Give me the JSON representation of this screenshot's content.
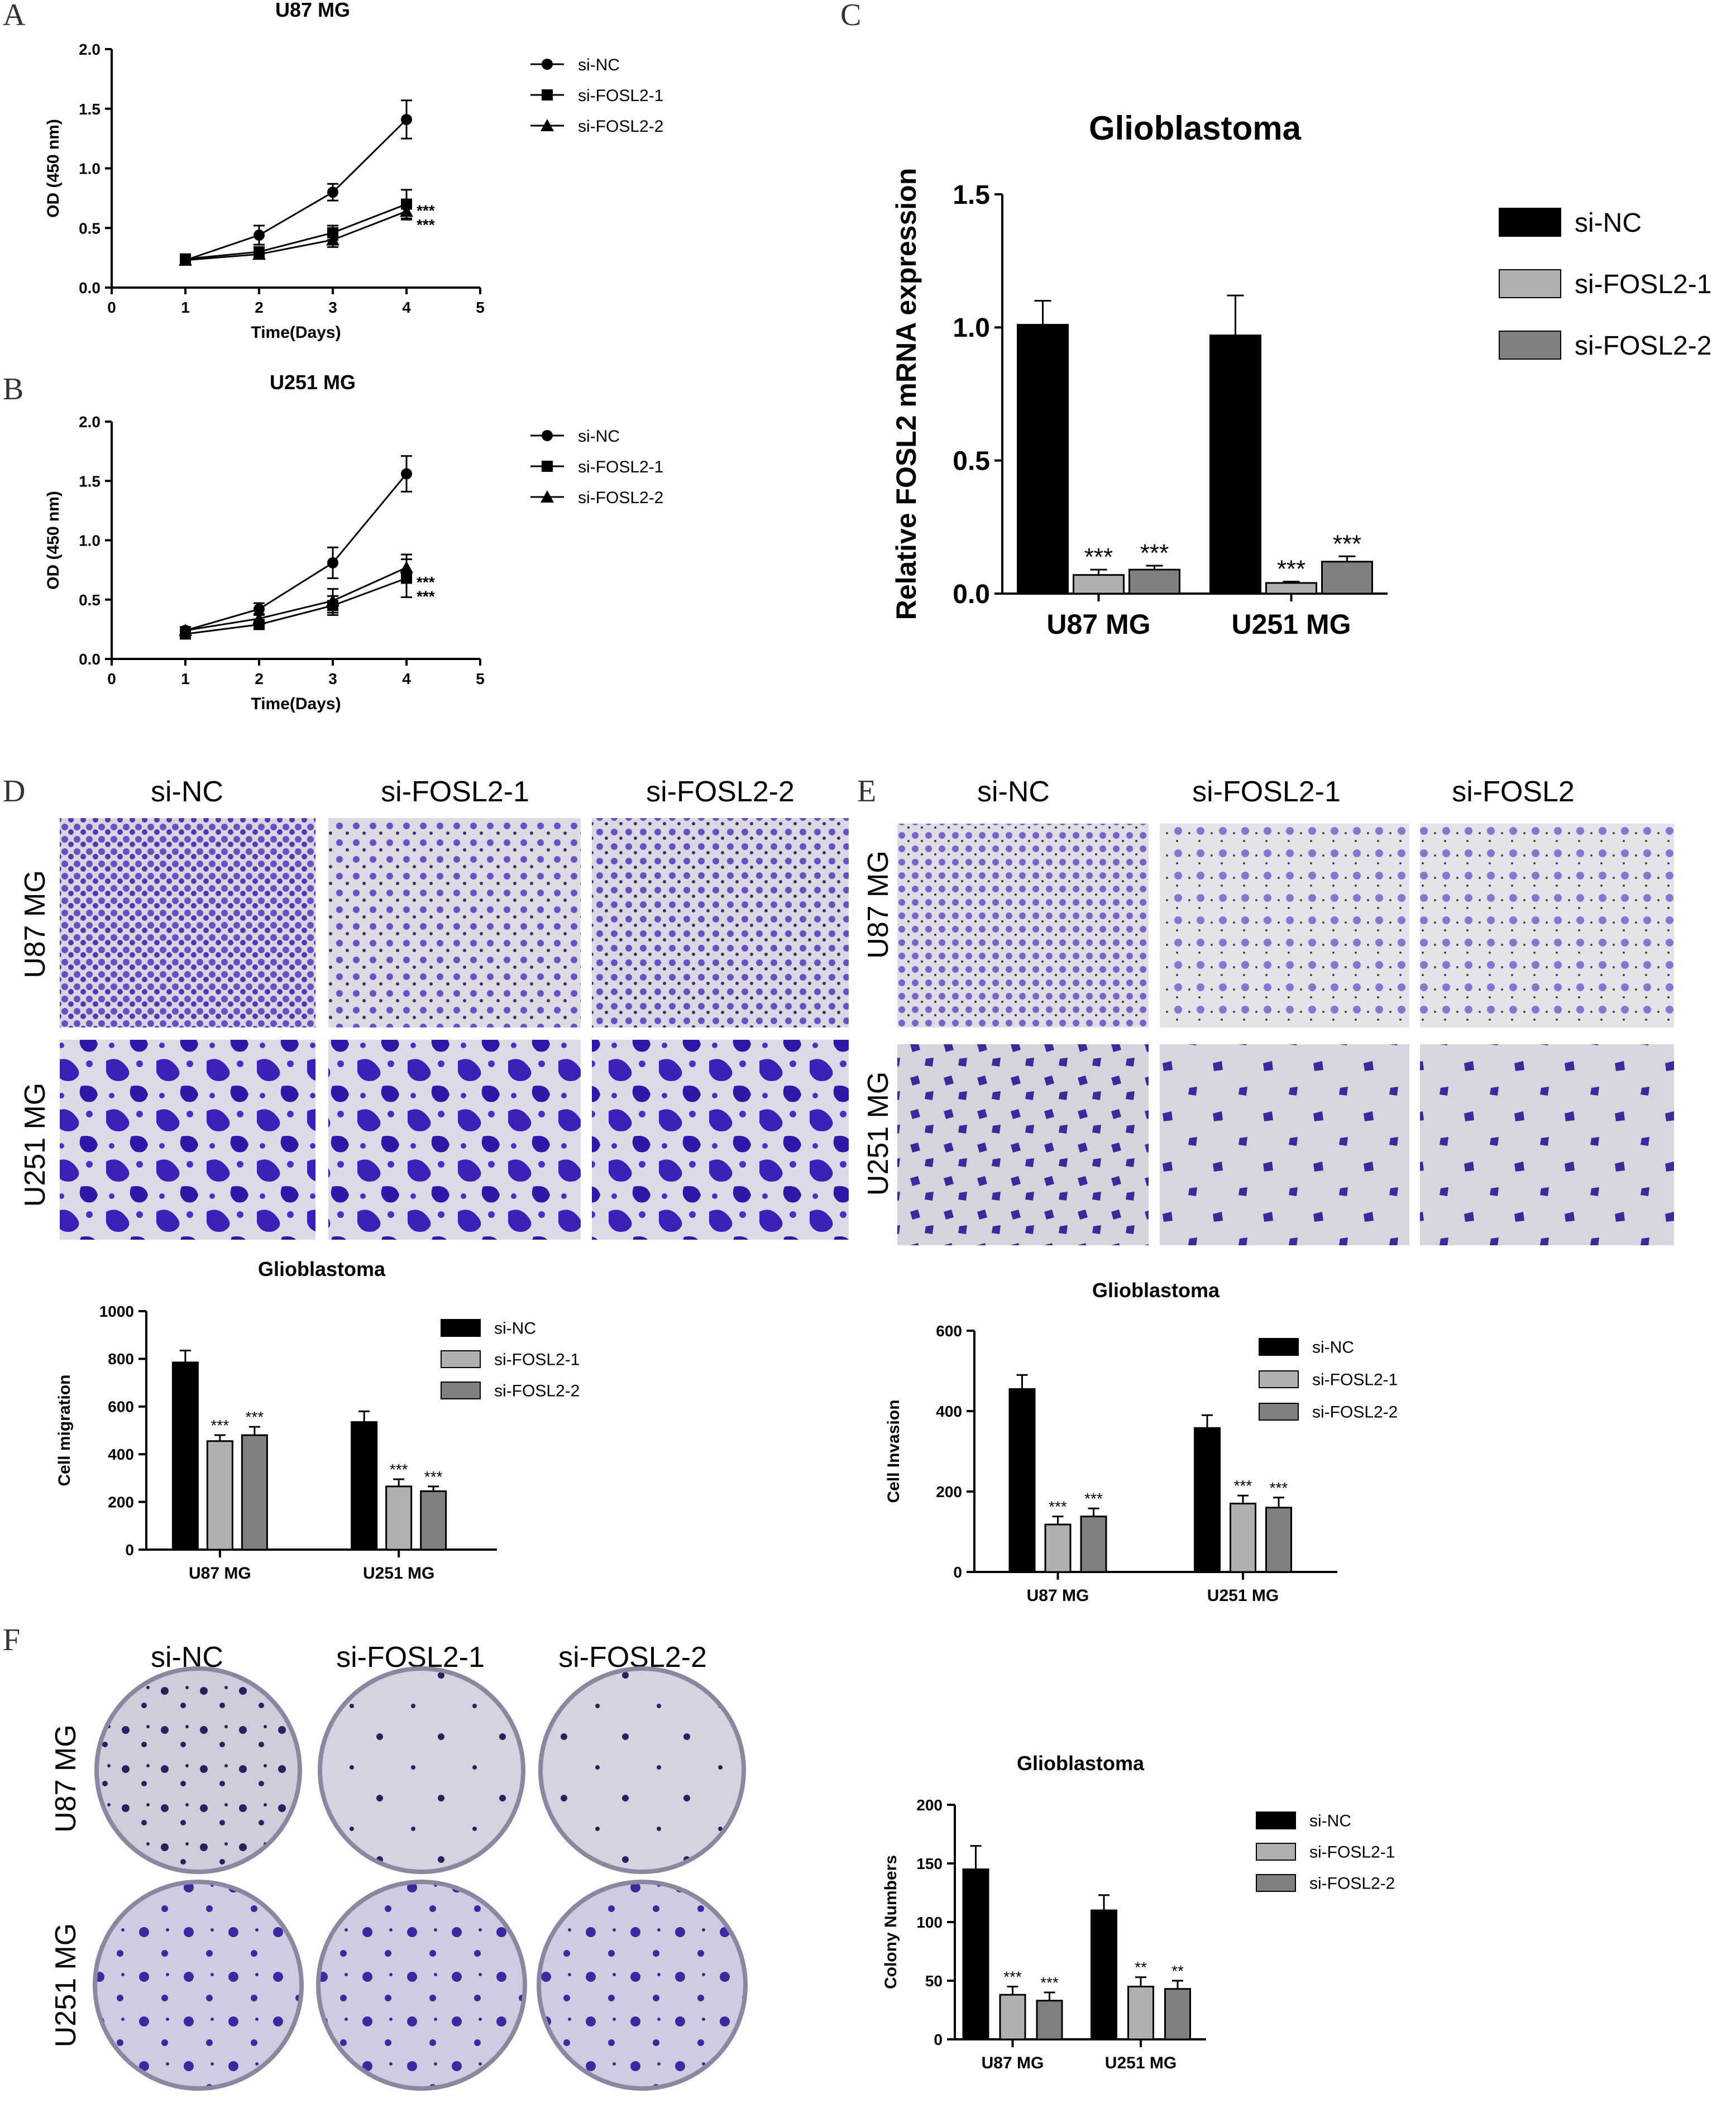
{
  "panels": {
    "A": "A",
    "B": "B",
    "C": "C",
    "D": "D",
    "E": "E",
    "F": "F"
  },
  "images": {
    "D": {
      "columns": [
        "si-NC",
        "si-FOSL2-1",
        "si-FOSL2-2"
      ],
      "rows": [
        "U87 MG",
        "U251 MG"
      ]
    },
    "E": {
      "columns": [
        "si-NC",
        "si-FOSL2-1",
        "si-FOSL2"
      ],
      "rows": [
        "U87 MG",
        "U251 MG"
      ]
    },
    "F": {
      "columns": [
        "si-NC",
        "si-FOSL2-1",
        "si-FOSL2-2"
      ],
      "rows": [
        "U87 MG",
        "U251 MG"
      ]
    }
  },
  "colors": {
    "si_nc": "#000000",
    "si_fosl2_1": "#b0b0b0",
    "si_fosl2_2": "#808080",
    "crystal_violet": "#4b2ea8",
    "plate_bg": "#d9d6e6"
  },
  "chart_data": [
    {
      "id": "A",
      "type": "line",
      "title": "U87 MG",
      "xlabel": "Time(Days)",
      "ylabel": "OD (450 nm)",
      "xlim": [
        0,
        5
      ],
      "ylim": [
        0,
        2.0
      ],
      "xticks": [
        "0",
        "1",
        "2",
        "3",
        "4",
        "5"
      ],
      "yticks": [
        "0.0",
        "0.5",
        "1.0",
        "1.5",
        "2.0"
      ],
      "x": [
        1,
        2,
        3,
        4
      ],
      "series": [
        {
          "name": "si-NC",
          "marker": "circle",
          "values": [
            0.23,
            0.44,
            0.8,
            1.41
          ],
          "err": [
            0.02,
            0.08,
            0.07,
            0.16
          ]
        },
        {
          "name": "si-FOSL2-1",
          "marker": "square",
          "values": [
            0.24,
            0.3,
            0.46,
            0.7
          ],
          "err": [
            0.02,
            0.04,
            0.06,
            0.12
          ]
        },
        {
          "name": "si-FOSL2-2",
          "marker": "triangle",
          "values": [
            0.23,
            0.28,
            0.4,
            0.64
          ],
          "err": [
            0.02,
            0.03,
            0.06,
            0.07
          ]
        }
      ],
      "annotations": [
        "***",
        "***"
      ]
    },
    {
      "id": "B",
      "type": "line",
      "title": "U251 MG",
      "xlabel": "Time(Days)",
      "ylabel": "OD (450 nm)",
      "xlim": [
        0,
        5
      ],
      "ylim": [
        0,
        2.0
      ],
      "xticks": [
        "0",
        "1",
        "2",
        "3",
        "4",
        "5"
      ],
      "yticks": [
        "0.0",
        "0.5",
        "1.0",
        "1.5",
        "2.0"
      ],
      "x": [
        1,
        2,
        3,
        4
      ],
      "series": [
        {
          "name": "si-NC",
          "marker": "circle",
          "values": [
            0.24,
            0.42,
            0.81,
            1.56
          ],
          "err": [
            0.03,
            0.05,
            0.13,
            0.15
          ]
        },
        {
          "name": "si-FOSL2-1",
          "marker": "square",
          "values": [
            0.21,
            0.29,
            0.45,
            0.68
          ],
          "err": [
            0.03,
            0.03,
            0.08,
            0.16
          ]
        },
        {
          "name": "si-FOSL2-2",
          "marker": "triangle",
          "values": [
            0.24,
            0.34,
            0.49,
            0.77
          ],
          "err": [
            0.03,
            0.04,
            0.1,
            0.11
          ]
        }
      ],
      "annotations": [
        "***",
        "***"
      ]
    },
    {
      "id": "C",
      "type": "bar",
      "title": "Glioblastoma",
      "xlabel": "",
      "ylabel": "Relative FOSL2 mRNA expression",
      "ylim": [
        0,
        1.5
      ],
      "yticks": [
        "0.0",
        "0.5",
        "1.0",
        "1.5"
      ],
      "categories": [
        "U87 MG",
        "U251 MG"
      ],
      "series": [
        {
          "name": "si-NC",
          "values": [
            1.01,
            0.97
          ],
          "err": [
            0.09,
            0.15
          ],
          "sig": [
            "",
            ""
          ]
        },
        {
          "name": "si-FOSL2-1",
          "values": [
            0.07,
            0.04
          ],
          "err": [
            0.02,
            0.005
          ],
          "sig": [
            "***",
            "***"
          ]
        },
        {
          "name": "si-FOSL2-2",
          "values": [
            0.09,
            0.12
          ],
          "err": [
            0.015,
            0.02
          ],
          "sig": [
            "***",
            "***"
          ]
        }
      ]
    },
    {
      "id": "D",
      "type": "bar",
      "title": "Glioblastoma",
      "xlabel": "",
      "ylabel": "Cell migration",
      "ylim": [
        0,
        1000
      ],
      "yticks": [
        "0",
        "200",
        "400",
        "600",
        "800",
        "1000"
      ],
      "categories": [
        "U87 MG",
        "U251 MG"
      ],
      "series": [
        {
          "name": "si-NC",
          "values": [
            785,
            535
          ],
          "err": [
            50,
            45
          ],
          "sig": [
            "",
            ""
          ]
        },
        {
          "name": "si-FOSL2-1",
          "values": [
            455,
            265
          ],
          "err": [
            25,
            30
          ],
          "sig": [
            "***",
            "***"
          ]
        },
        {
          "name": "si-FOSL2-2",
          "values": [
            480,
            245
          ],
          "err": [
            35,
            20
          ],
          "sig": [
            "***",
            "***"
          ]
        }
      ]
    },
    {
      "id": "E",
      "type": "bar",
      "title": "Glioblastoma",
      "xlabel": "",
      "ylabel": "Cell Invasion",
      "ylim": [
        0,
        600
      ],
      "yticks": [
        "0",
        "200",
        "400",
        "600"
      ],
      "categories": [
        "U87 MG",
        "U251 MG"
      ],
      "series": [
        {
          "name": "si-NC",
          "values": [
            455,
            358
          ],
          "err": [
            35,
            32
          ],
          "sig": [
            "",
            ""
          ]
        },
        {
          "name": "si-FOSL2-1",
          "values": [
            118,
            170
          ],
          "err": [
            20,
            20
          ],
          "sig": [
            "***",
            "***"
          ]
        },
        {
          "name": "si-FOSL2-2",
          "values": [
            138,
            160
          ],
          "err": [
            20,
            25
          ],
          "sig": [
            "***",
            "***"
          ]
        }
      ]
    },
    {
      "id": "F",
      "type": "bar",
      "title": "Glioblastoma",
      "xlabel": "",
      "ylabel": "Colony Numbers",
      "ylim": [
        0,
        200
      ],
      "yticks": [
        "0",
        "50",
        "100",
        "150",
        "200"
      ],
      "categories": [
        "U87 MG",
        "U251 MG"
      ],
      "series": [
        {
          "name": "si-NC",
          "values": [
            145,
            110
          ],
          "err": [
            20,
            13
          ],
          "sig": [
            "",
            ""
          ]
        },
        {
          "name": "si-FOSL2-1",
          "values": [
            38,
            45
          ],
          "err": [
            7,
            8
          ],
          "sig": [
            "***",
            "**"
          ]
        },
        {
          "name": "si-FOSL2-2",
          "values": [
            33,
            43
          ],
          "err": [
            7,
            7
          ],
          "sig": [
            "***",
            "**"
          ]
        }
      ]
    }
  ]
}
